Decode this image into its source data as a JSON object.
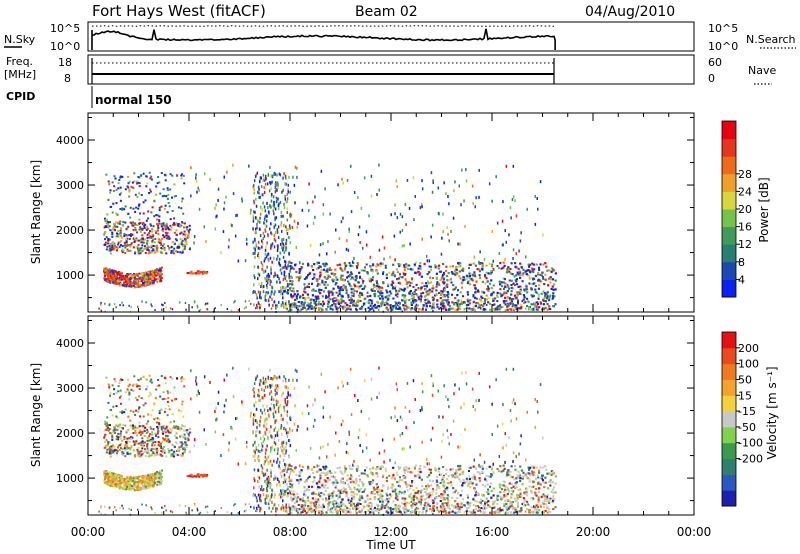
{
  "header": {
    "title": "Fort Hays West (fitACF)",
    "beam": "Beam 02",
    "date": "04/Aug/2010"
  },
  "noise_panel": {
    "left_label": "N.Sky",
    "left_ticks": [
      "10^5",
      "10^0"
    ],
    "right_label": "N.Search",
    "right_ticks": [
      "10^5",
      "10^0"
    ]
  },
  "freq_panel": {
    "left_label_line1": "Freq.",
    "left_label_line2": "[MHz]",
    "left_ticks": [
      "18",
      "8"
    ],
    "right_label": "Nave",
    "right_ticks": [
      "60",
      "0"
    ]
  },
  "cpid": {
    "label": "CPID",
    "value": "normal 150"
  },
  "chart_data": [
    {
      "type": "heatmap",
      "name": "power",
      "ylabel": "Slant Range [km]",
      "yticks": [
        1000,
        2000,
        3000,
        4000
      ],
      "ylim": [
        180,
        4600
      ],
      "xlim": [
        0,
        24
      ],
      "xlabel": "",
      "xtick_labels": [],
      "data_end_hour": 18.5,
      "colorbar": {
        "label": "Power [dB]",
        "ticks": [
          "4",
          "8",
          "12",
          "16",
          "20",
          "24",
          "28"
        ],
        "colors": [
          "#0a1ff5",
          "#1848b4",
          "#268070",
          "#3f9a5c",
          "#76c34a",
          "#d7d63d",
          "#f0a028",
          "#f06b19",
          "#e8341c",
          "#e8000e"
        ],
        "range": [
          0,
          32
        ]
      }
    },
    {
      "type": "heatmap",
      "name": "velocity",
      "ylabel": "Slant Range [km]",
      "yticks": [
        1000,
        2000,
        3000,
        4000
      ],
      "ylim": [
        180,
        4600
      ],
      "xlim": [
        0,
        24
      ],
      "xlabel": "Time UT",
      "xtick_labels": [
        "00:00",
        "04:00",
        "08:00",
        "12:00",
        "16:00",
        "20:00",
        "00:00"
      ],
      "data_end_hour": 18.5,
      "colorbar": {
        "label": "Velocity [m s⁻¹]",
        "ticks": [
          "200",
          "100",
          "50",
          "15",
          "-15",
          "-50",
          "-100",
          "-200"
        ],
        "colors": [
          "#1b1fb0",
          "#2a58c0",
          "#2d7f6e",
          "#3b9a4c",
          "#7ed24c",
          "#c8c8c8",
          "#f6d23a",
          "#f3a32a",
          "#ef7a1f",
          "#ea4a1d",
          "#e80f12"
        ],
        "range": [
          -250,
          250
        ]
      }
    }
  ]
}
